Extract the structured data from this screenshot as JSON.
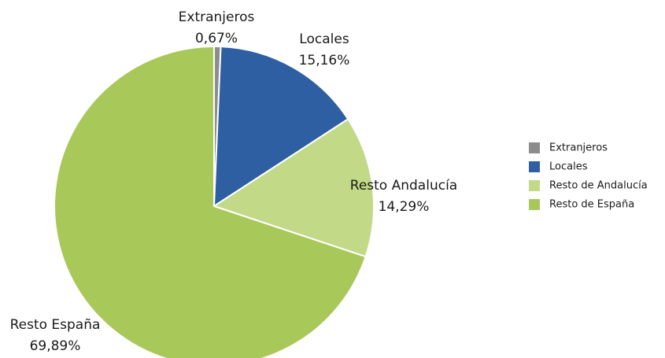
{
  "chart_data": {
    "type": "pie",
    "categories": [
      "Extranjeros",
      "Locales",
      "Resto de Andalucía",
      "Resto de España"
    ],
    "labels": [
      "Extranjeros",
      "Locales",
      "Resto Andalucía",
      "Resto España"
    ],
    "values": [
      0.67,
      15.16,
      14.29,
      69.89
    ],
    "value_labels": [
      "0,67%",
      "15,16%",
      "14,29%",
      "69,89%"
    ],
    "colors": [
      "#8c8c8c",
      "#2e5fa3",
      "#c2d987",
      "#a9c85a"
    ],
    "legend": "right"
  }
}
